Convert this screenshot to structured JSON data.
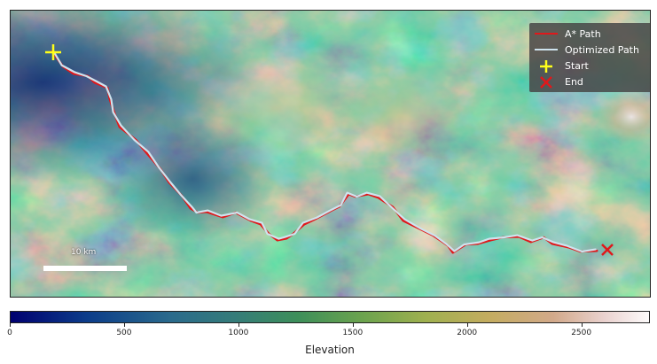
{
  "map": {
    "legend": {
      "astar": "A* Path",
      "optimized": "Optimized Path",
      "start": "Start",
      "end": "End"
    },
    "scale_bar": {
      "label": "10 km"
    },
    "colors": {
      "astar_path": "#e0181b",
      "optimized_path": "#cfe3ee",
      "start_marker": "#ffff1a",
      "end_marker": "#e0181b"
    },
    "colormap": "gist_earth",
    "colorbar": {
      "title": "Elevation",
      "min": 0,
      "max": 2800,
      "ticks": [
        "0",
        "500",
        "1000",
        "1500",
        "2000",
        "2500"
      ]
    }
  }
}
